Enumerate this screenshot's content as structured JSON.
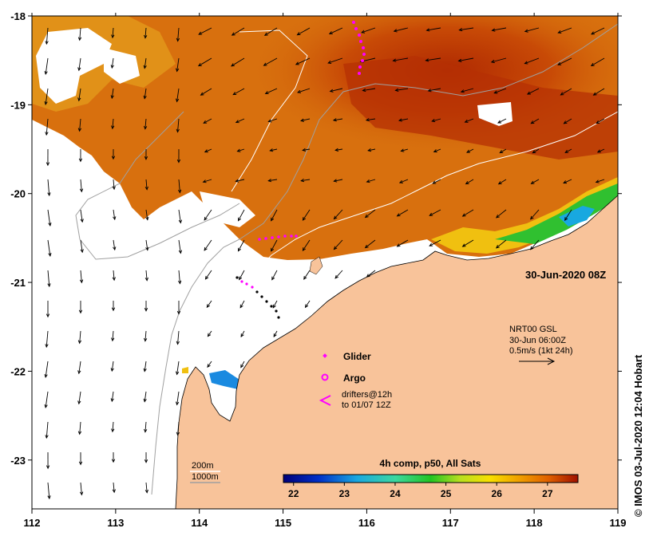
{
  "map": {
    "timestamp_label": "30-Jun-2020 08Z",
    "current_info": {
      "line1": "NRT00 GSL",
      "line2": "30-Jun 06:00Z",
      "line3": "0.5m/s (1kt 24h)"
    },
    "legend": {
      "glider": "Glider",
      "argo": "Argo",
      "drifters_line1": "drifters@12h",
      "drifters_line2": "to 01/07 12Z"
    },
    "isobaths": {
      "shallow": "200m",
      "deep": "1000m"
    },
    "colorbar": {
      "title": "4h comp, p50, All Sats",
      "ticks": [
        "22",
        "23",
        "24",
        "25",
        "26",
        "27"
      ],
      "tick_values": [
        22,
        23,
        24,
        25,
        26,
        27
      ],
      "range": [
        21.8,
        27.6
      ]
    },
    "axes": {
      "x_ticks": [
        "112",
        "113",
        "114",
        "115",
        "116",
        "117",
        "118",
        "119"
      ],
      "x_values": [
        112,
        113,
        114,
        115,
        116,
        117,
        118,
        119
      ],
      "y_ticks": [
        "-18",
        "-19",
        "-20",
        "-21",
        "-22",
        "-23"
      ],
      "y_values": [
        -18,
        -19,
        -20,
        -21,
        -22,
        -23
      ],
      "lon_range": [
        112,
        119
      ],
      "lat_range": [
        -23.55,
        -18
      ]
    },
    "credit": "© IMOS 03-Jul-2020 12:04 Hobart",
    "colors": {
      "land": "#f8c39a",
      "sst_warm": "#c23a04",
      "sst_mid": "#d86a0c",
      "sst_cool": "#e8a020",
      "glider": "#ff00ff",
      "current_arrow": "#000000"
    }
  }
}
